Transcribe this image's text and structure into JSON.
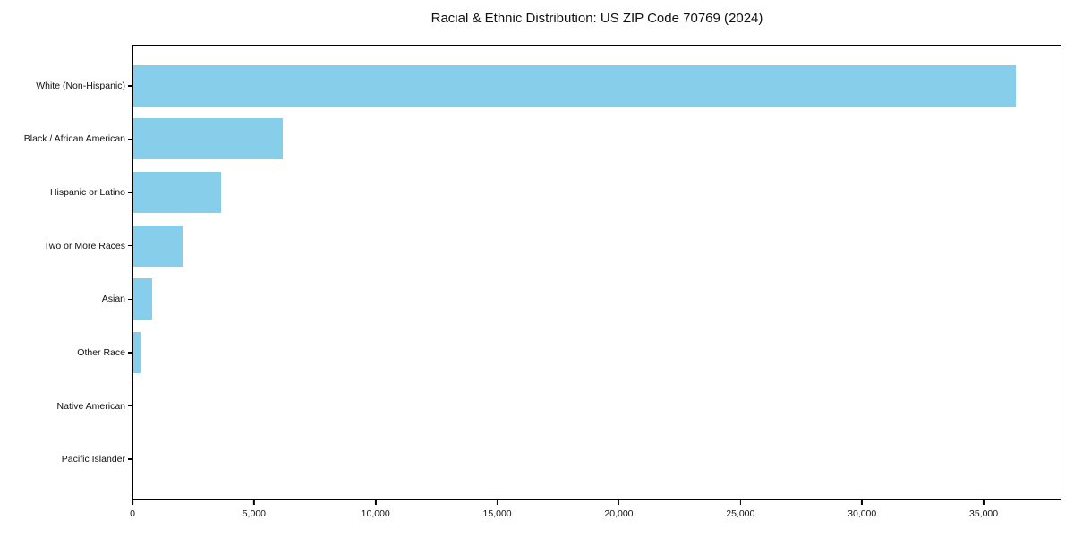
{
  "colors": {
    "bar": "#87CEEB",
    "axis": "#000000",
    "background": "#FFFFFF",
    "text": "#111111"
  },
  "chart_data": {
    "type": "bar",
    "orientation": "horizontal",
    "title": "Racial & Ethnic Distribution: US ZIP Code 70769 (2024)",
    "categories": [
      "White (Non-Hispanic)",
      "Black / African American",
      "Hispanic or Latino",
      "Two or More Races",
      "Asian",
      "Other Race",
      "Native American",
      "Pacific Islander"
    ],
    "values": [
      36350,
      6150,
      3600,
      2040,
      790,
      310,
      0,
      0
    ],
    "xlabel": "",
    "ylabel": "",
    "xlim": [
      0,
      38200
    ],
    "xticks": [
      0,
      5000,
      10000,
      15000,
      20000,
      25000,
      30000,
      35000
    ],
    "xtick_labels": [
      "0",
      "5,000",
      "10,000",
      "15,000",
      "20,000",
      "25,000",
      "30,000",
      "35,000"
    ],
    "bar_color": "#87CEEB",
    "grid": false,
    "legend": null
  }
}
